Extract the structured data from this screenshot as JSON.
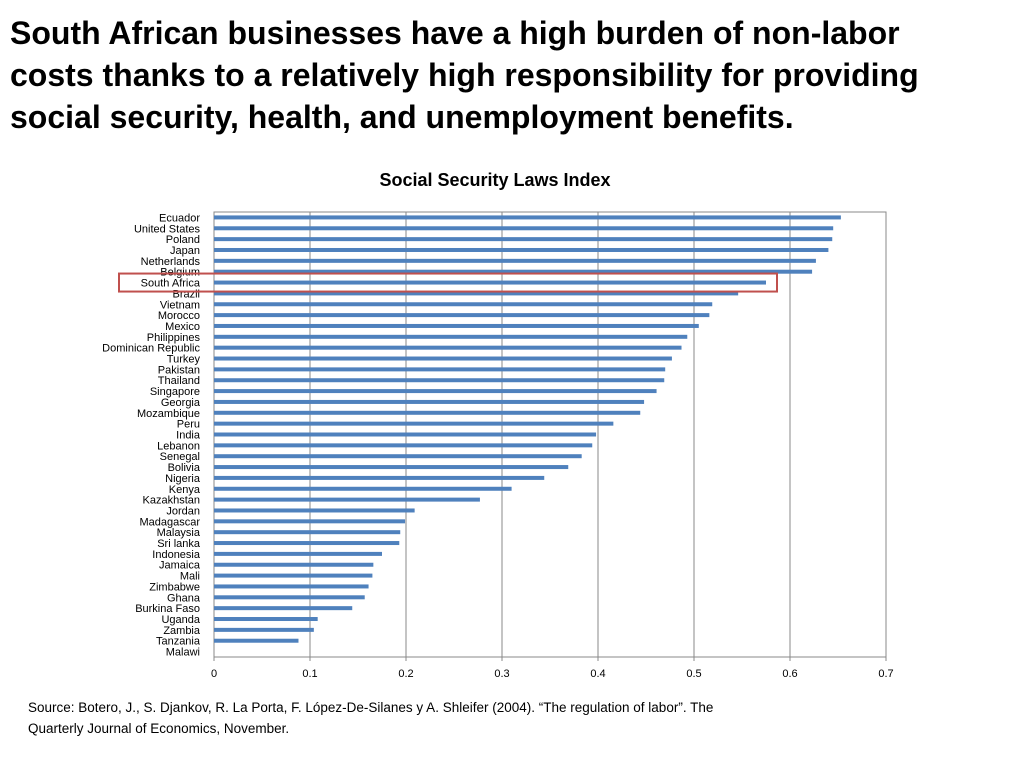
{
  "headline": {
    "lines": [
      "South African businesses have a high burden of non-labor",
      "costs thanks to a relatively high responsibility for providing",
      "social security, health, and unemployment benefits."
    ]
  },
  "source_note": {
    "lines": [
      "Source: Botero, J., S. Djankov, R. La Porta, F. López-De-Silanes y A. Shleifer (2004). “The regulation of labor”. The",
      "Quarterly Journal of Economics, November."
    ]
  },
  "chart_data": {
    "type": "bar",
    "orientation": "horizontal",
    "title": "Social Security Laws Index",
    "xlabel": "",
    "ylabel": "",
    "xlim": [
      0,
      0.7
    ],
    "xticks": [
      0,
      0.1,
      0.2,
      0.3,
      0.4,
      0.5,
      0.6,
      0.7
    ],
    "xtick_labels": [
      "0",
      "0.1",
      "0.2",
      "0.3",
      "0.4",
      "0.5",
      "0.6",
      "0.7"
    ],
    "grid": "vertical",
    "bar_color": "#4f81bd",
    "highlight_color": "#c0504d",
    "highlight_category": "South Africa",
    "categories": [
      "Ecuador",
      "United States",
      "Poland",
      "Japan",
      "Netherlands",
      "Belgium",
      "South Africa",
      "Brazil",
      "Vietnam",
      "Morocco",
      "Mexico",
      "Philippines",
      "Dominican Republic",
      "Turkey",
      "Pakistan",
      "Thailand",
      "Singapore",
      "Georgia",
      "Mozambique",
      "Peru",
      "India",
      "Lebanon",
      "Senegal",
      "Bolivia",
      "Nigeria",
      "Kenya",
      "Kazakhstan",
      "Jordan",
      "Madagascar",
      "Malaysia",
      "Sri lanka",
      "Indonesia",
      "Jamaica",
      "Mali",
      "Zimbabwe",
      "Ghana",
      "Burkina Faso",
      "Uganda",
      "Zambia",
      "Tanzania",
      "Malawi"
    ],
    "values": [
      0.653,
      0.645,
      0.644,
      0.64,
      0.627,
      0.623,
      0.575,
      0.546,
      0.519,
      0.516,
      0.505,
      0.493,
      0.487,
      0.477,
      0.47,
      0.469,
      0.461,
      0.448,
      0.444,
      0.416,
      0.398,
      0.394,
      0.383,
      0.369,
      0.344,
      0.31,
      0.277,
      0.209,
      0.199,
      0.194,
      0.193,
      0.175,
      0.166,
      0.165,
      0.161,
      0.157,
      0.144,
      0.108,
      0.104,
      0.088,
      0.0
    ]
  }
}
